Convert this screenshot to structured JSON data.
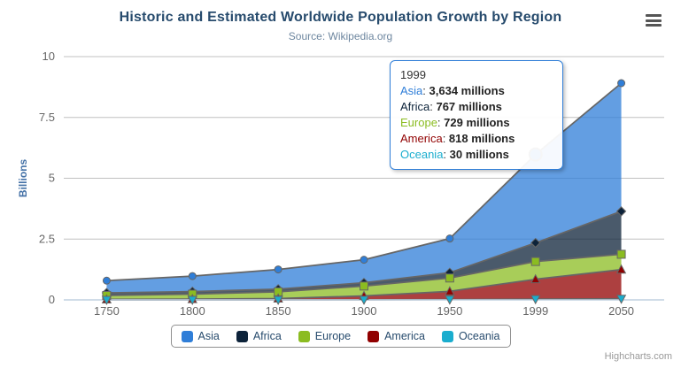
{
  "header": {
    "title": "Historic and Estimated Worldwide Population Growth by Region",
    "subtitle": "Source: Wikipedia.org"
  },
  "chart_data": {
    "type": "area",
    "stacking": "normal",
    "title": "Historic and Estimated Worldwide Population Growth by Region",
    "subtitle": "Source: Wikipedia.org",
    "categories": [
      "1750",
      "1800",
      "1850",
      "1900",
      "1950",
      "1999",
      "2050"
    ],
    "xlabel": "",
    "ylabel": "Billions",
    "ylim": [
      0,
      10
    ],
    "yticks": [
      "0",
      "2.5",
      "5",
      "7.5",
      "10"
    ],
    "values_unit": "millions",
    "grid": true,
    "legend_position": "bottom",
    "line_color": "#666666",
    "grid_color": "#c0c0c0",
    "xaxis_line_color": "#c0d0e0",
    "series": [
      {
        "name": "Asia",
        "color": "#2f7ed8",
        "marker": "circle",
        "values": [
          502,
          635,
          809,
          947,
          1402,
          3634,
          5268
        ]
      },
      {
        "name": "Africa",
        "color": "#0d233a",
        "marker": "diamond",
        "values": [
          106,
          107,
          111,
          133,
          221,
          767,
          1766
        ]
      },
      {
        "name": "Europe",
        "color": "#8bbc21",
        "marker": "square",
        "values": [
          163,
          203,
          276,
          408,
          547,
          729,
          628
        ]
      },
      {
        "name": "America",
        "color": "#910000",
        "marker": "triangle",
        "values": [
          18,
          31,
          54,
          156,
          339,
          818,
          1201
        ]
      },
      {
        "name": "Oceania",
        "color": "#1aadce",
        "marker": "triangle-down",
        "values": [
          2,
          2,
          2,
          6,
          13,
          30,
          46
        ]
      }
    ]
  },
  "tooltip": {
    "visible": true,
    "category": "1999",
    "unit": "millions",
    "highlight": {
      "series": "Asia",
      "category": "1999"
    },
    "rows": [
      {
        "name": "Asia",
        "value": "3,634",
        "color": "#2f7ed8"
      },
      {
        "name": "Africa",
        "value": "767",
        "color": "#0d233a"
      },
      {
        "name": "Europe",
        "value": "729",
        "color": "#8bbc21"
      },
      {
        "name": "America",
        "value": "818",
        "color": "#910000"
      },
      {
        "name": "Oceania",
        "value": "30",
        "color": "#1aadce"
      }
    ]
  },
  "legend": {
    "items": [
      {
        "label": "Asia",
        "color": "#2f7ed8"
      },
      {
        "label": "Africa",
        "color": "#0d233a"
      },
      {
        "label": "Europe",
        "color": "#8bbc21"
      },
      {
        "label": "America",
        "color": "#910000"
      },
      {
        "label": "Oceania",
        "color": "#1aadce"
      }
    ]
  },
  "credits": {
    "label": "Highcharts.com"
  },
  "colors": {
    "title": "#274b6d",
    "subtitle": "#6d869f",
    "axis_labels": "#666666",
    "y_axis_title": "#4572a7",
    "legend_text": "#274b6d",
    "tooltip_border": "#2f7ed8"
  }
}
